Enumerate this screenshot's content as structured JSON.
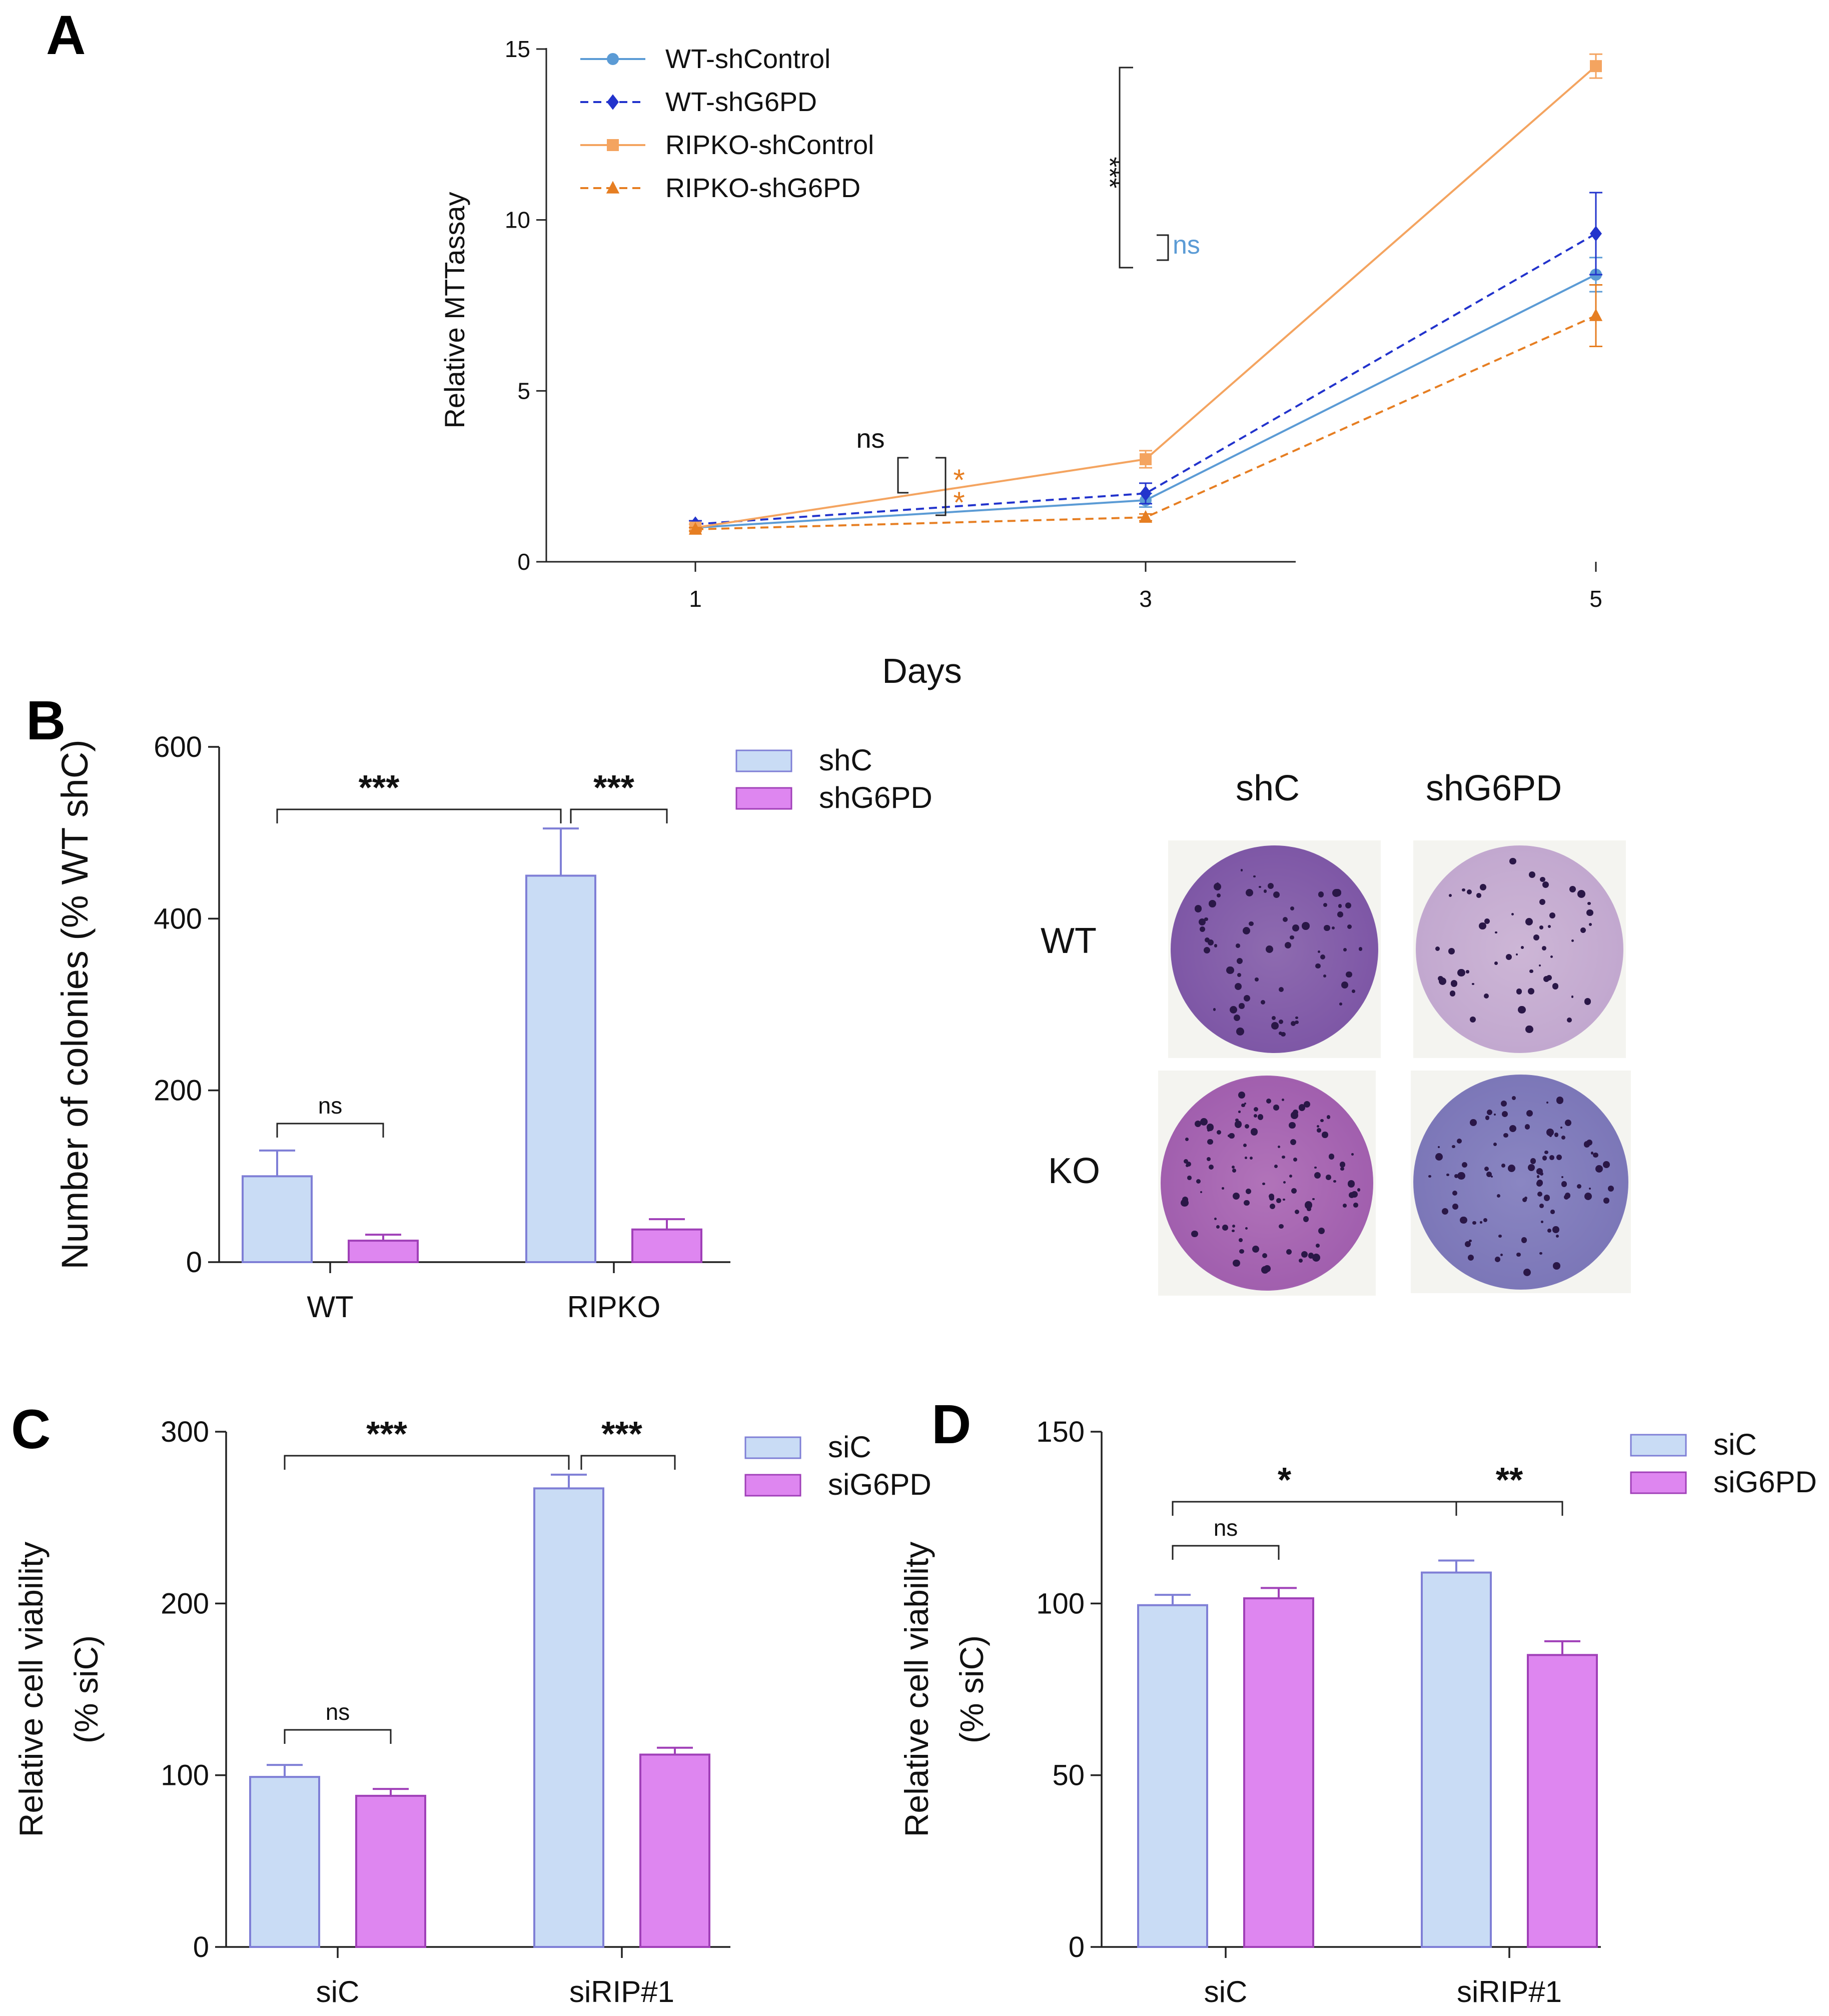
{
  "panel_letters": [
    "A",
    "B",
    "C",
    "D"
  ],
  "chart_data": [
    {
      "panel": "A",
      "type": "line",
      "title": "",
      "xlabel": "Days",
      "ylabel": "Relative MTTassay",
      "x": [
        1,
        3,
        5
      ],
      "xticks": [
        "1",
        "3",
        "5"
      ],
      "ylim": [
        0,
        15
      ],
      "yticks": [
        "0",
        "5",
        "10",
        "15"
      ],
      "legend_position": "top-left",
      "series": [
        {
          "name": "WT-shControl",
          "values": [
            1.0,
            1.8,
            8.4
          ],
          "err": [
            0.1,
            0.2,
            0.5
          ],
          "color": "#5b9bd5",
          "dash": false,
          "marker": "circle"
        },
        {
          "name": "WT-shG6PD",
          "values": [
            1.1,
            2.0,
            9.6
          ],
          "err": [
            0.1,
            0.3,
            1.2
          ],
          "color": "#2233cc",
          "dash": true,
          "marker": "diamond"
        },
        {
          "name": "RIPKO-shControl",
          "values": [
            1.0,
            3.0,
            14.5
          ],
          "err": [
            0.1,
            0.25,
            0.35
          ],
          "color": "#f4a460",
          "dash": false,
          "marker": "square"
        },
        {
          "name": "RIPKO-shG6PD",
          "values": [
            0.95,
            1.3,
            7.2
          ],
          "err": [
            0.05,
            0.1,
            0.9
          ],
          "color": "#e67e22",
          "dash": true,
          "marker": "triangle"
        }
      ],
      "annotations": [
        "ns",
        "***",
        "ns",
        "*",
        "*"
      ]
    },
    {
      "panel": "B",
      "type": "bar",
      "title": "",
      "xlabel": "",
      "ylabel": "Number of colonies (% WT shC)",
      "categories": [
        "WT",
        "RIPKO"
      ],
      "ylim": [
        0,
        600
      ],
      "yticks": [
        "0",
        "200",
        "400",
        "600"
      ],
      "legend_position": "top-right",
      "series": [
        {
          "name": "shC",
          "values": [
            100,
            450
          ],
          "err": [
            30,
            55
          ]
        },
        {
          "name": "shG6PD",
          "values": [
            25,
            38
          ],
          "err": [
            7,
            12
          ]
        }
      ],
      "annotations": [
        "***",
        "***",
        "ns"
      ]
    },
    {
      "panel": "C",
      "type": "bar",
      "title": "",
      "xlabel": "",
      "ylabel": "Relative cell viability (% siC)",
      "ylabel_lines": [
        "Relative cell viability",
        "(% siC)"
      ],
      "categories": [
        "siC",
        "siRIP#1"
      ],
      "ylim": [
        0,
        300
      ],
      "yticks": [
        "0",
        "100",
        "200",
        "300"
      ],
      "legend_position": "top-right",
      "series": [
        {
          "name": "siC",
          "values": [
            99,
            267
          ],
          "err": [
            7,
            8
          ]
        },
        {
          "name": "siG6PD",
          "values": [
            88,
            112
          ],
          "err": [
            4,
            4
          ]
        }
      ],
      "annotations": [
        "***",
        "***",
        "ns"
      ]
    },
    {
      "panel": "D",
      "type": "bar",
      "title": "",
      "xlabel": "",
      "ylabel": "Relative cell viability (% siC)",
      "ylabel_lines": [
        "Relative cell viability",
        "(% siC)"
      ],
      "categories": [
        "siC",
        "siRIP#1"
      ],
      "ylim": [
        0,
        150
      ],
      "yticks": [
        "0",
        "50",
        "100",
        "150"
      ],
      "legend_position": "top-right",
      "series": [
        {
          "name": "siC",
          "values": [
            99.5,
            109
          ],
          "err": [
            3,
            3.5
          ]
        },
        {
          "name": "siG6PD",
          "values": [
            101.5,
            85
          ],
          "err": [
            3,
            4
          ]
        }
      ],
      "annotations": [
        "*",
        "**",
        "ns"
      ]
    }
  ],
  "photo": {
    "col_labels": [
      "shC",
      "shG6PD"
    ],
    "row_labels": [
      "WT",
      "KO"
    ]
  },
  "colors": {
    "bar_blue_fill": "#c9dcf5",
    "bar_blue_edge": "#7f7fd6",
    "bar_pink_fill": "#de86f0",
    "bar_pink_edge": "#a040b8"
  }
}
